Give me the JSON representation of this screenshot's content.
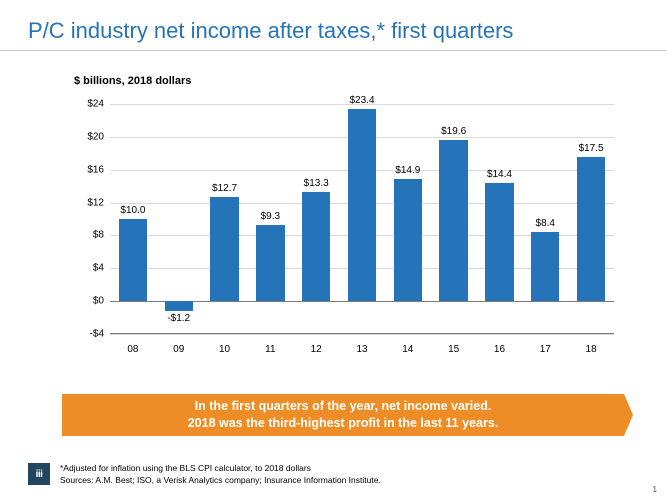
{
  "title": "P/C industry net income after taxes,* first quarters",
  "subtitle": "$ billions, 2018 dollars",
  "chart": {
    "type": "bar",
    "ylim": [
      -4,
      24
    ],
    "ytick_step": 4,
    "ytick_prefix": "$",
    "categories": [
      "08",
      "09",
      "10",
      "11",
      "12",
      "13",
      "14",
      "15",
      "16",
      "17",
      "18"
    ],
    "values": [
      10.0,
      -1.2,
      12.7,
      9.3,
      13.3,
      23.4,
      14.9,
      19.6,
      14.4,
      8.4,
      17.5
    ],
    "value_labels": [
      "$10.0",
      "-$1.2",
      "$12.7",
      "$9.3",
      "$13.3",
      "$23.4",
      "$14.9",
      "$19.6",
      "$14.4",
      "$8.4",
      "$17.5"
    ],
    "bar_color": "#2574b9",
    "grid_color": "#d9d9d9",
    "axis_color": "#7a7a7a",
    "background_color": "#ffffff",
    "bar_width_ratio": 0.62,
    "label_fontsize": 10,
    "title_color": "#2574b9"
  },
  "callout": {
    "line1": "In the first quarters of the year, net income varied.",
    "line2": "2018 was the third-highest profit in the last 11 years.",
    "bg_color": "#ee8d25",
    "text_color": "#ffffff"
  },
  "footer": {
    "logo_text": "iii",
    "logo_bg": "#22465f",
    "note1": "*Adjusted for inflation using the BLS CPI calculator, to 2018 dollars",
    "note2": "Sources: A.M. Best; ISO, a Verisk Analytics company; Insurance Information Institute."
  },
  "page_number": "1"
}
